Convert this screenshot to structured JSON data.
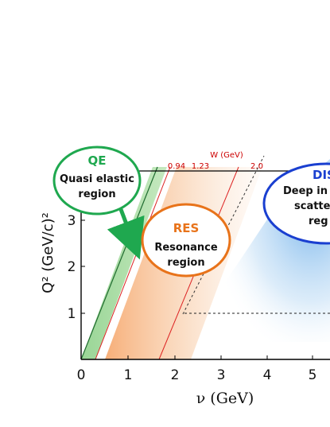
{
  "axes": {
    "x_label": "ν (GeV)",
    "y_label": "Q² (GeV/c)²",
    "x_ticks": [
      "0",
      "1",
      "2",
      "3",
      "4",
      "5"
    ],
    "y_ticks": [
      "1",
      "2",
      "3"
    ],
    "top_axis_label": "W (GeV)",
    "top_ticks": [
      "0.94",
      "1.23",
      "2.0"
    ]
  },
  "regions": {
    "qe": {
      "abbr": "QE",
      "line1": "Quasi elastic",
      "line2": "region",
      "color": "#1a9a4a"
    },
    "res": {
      "abbr": "RES",
      "line1": "Resonance",
      "line2": "region",
      "color": "#e8731a"
    },
    "dis": {
      "abbr": "DIS",
      "line1": "Deep in",
      "line2": "scatte",
      "line3": "reg",
      "color": "#1a3fd0"
    }
  },
  "colors": {
    "w_lines": "#dd2222",
    "axis": "#000000"
  }
}
